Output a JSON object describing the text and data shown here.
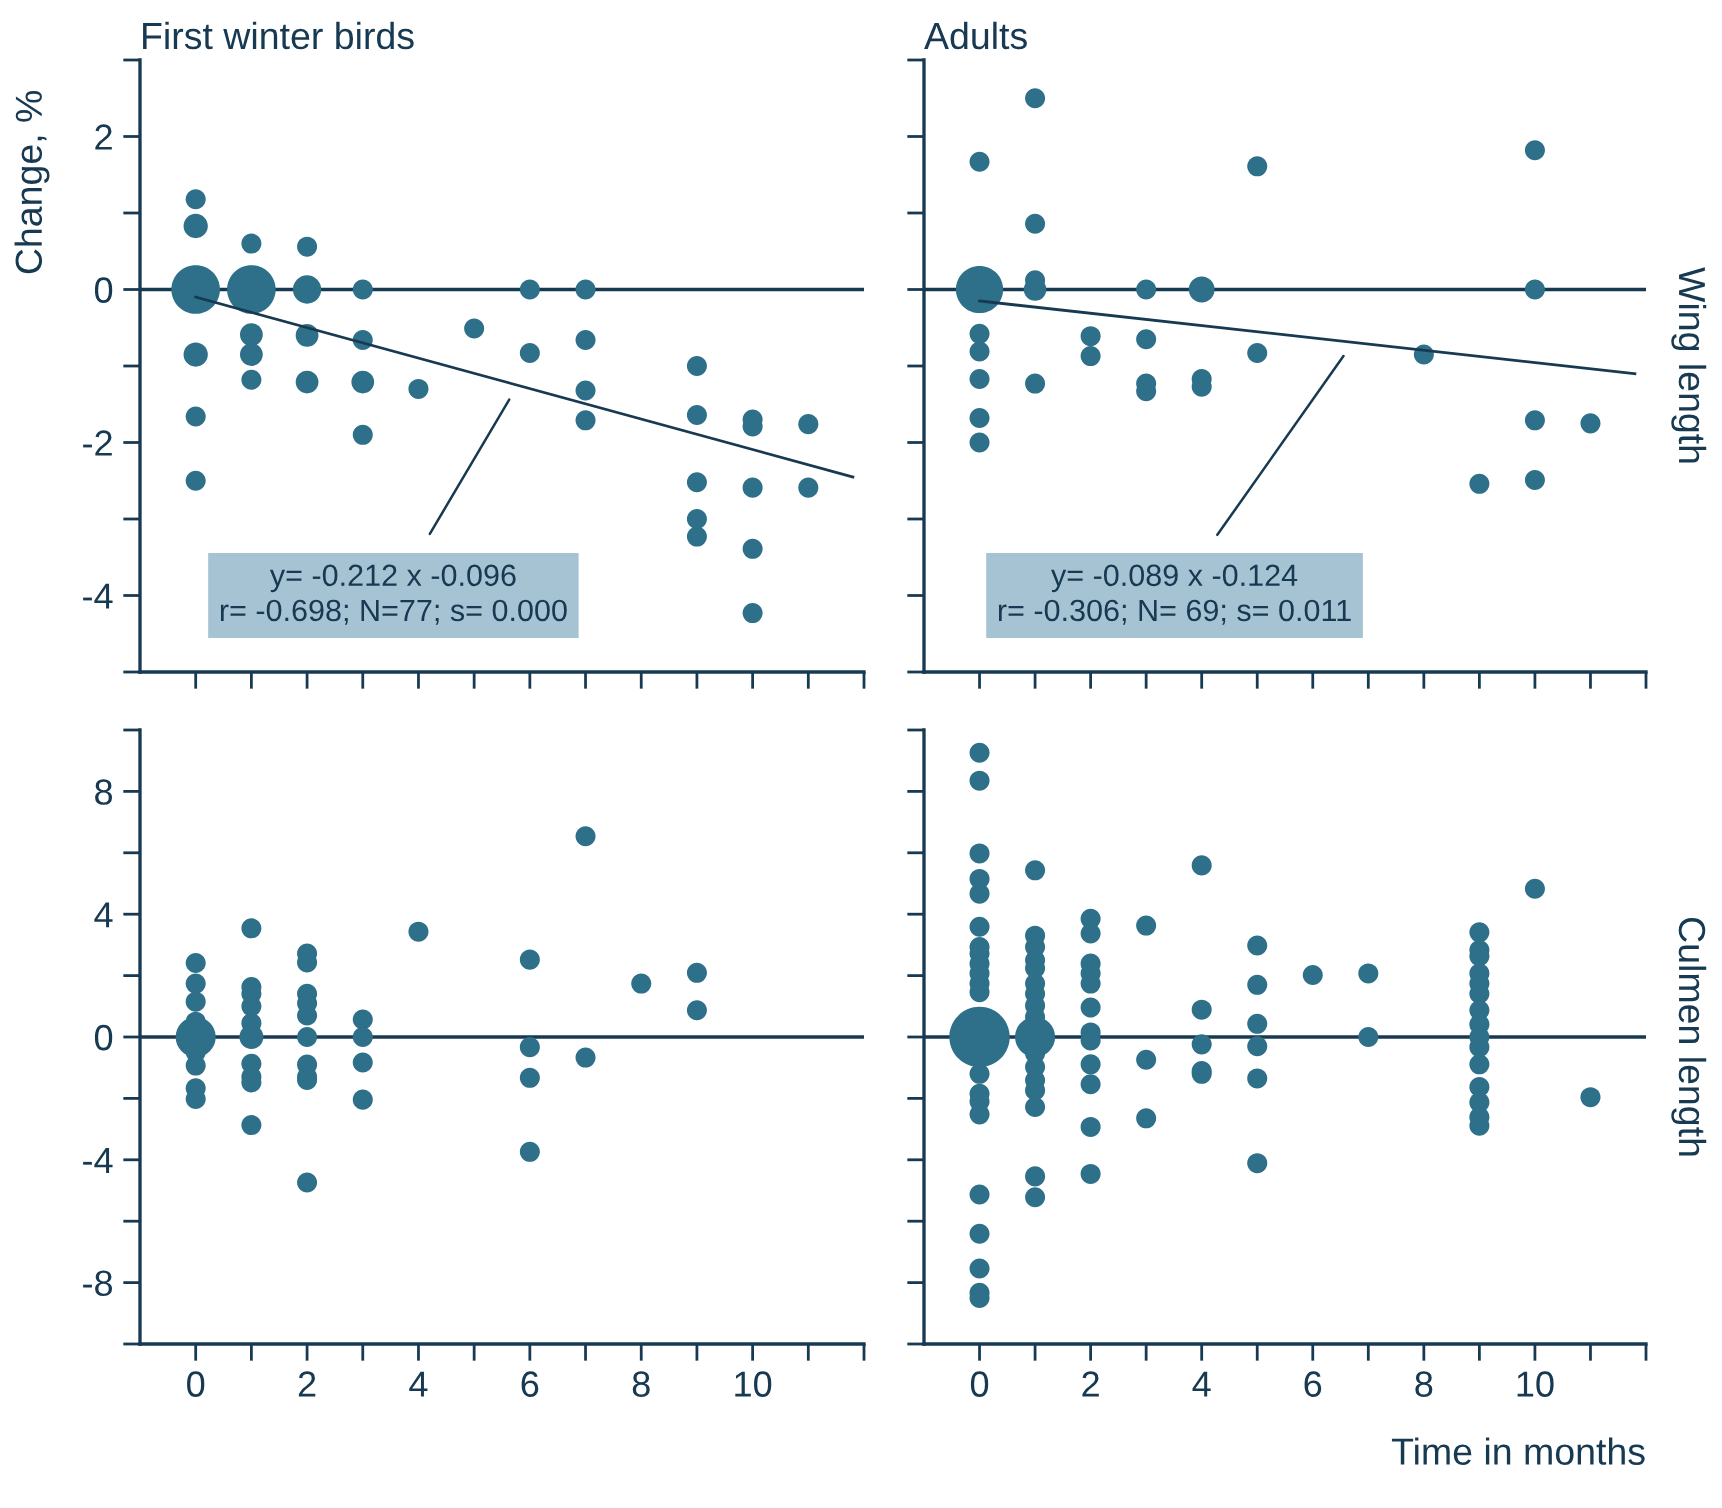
{
  "chart_data": [
    {
      "type": "bubble",
      "title": "First winter birds",
      "ylabel": "Change, %",
      "tick_labels": "y",
      "xlim": [
        -1,
        12
      ],
      "xticks": [
        {
          "value": 0,
          "label": null
        },
        {
          "value": 1,
          "label": null
        },
        {
          "value": 2,
          "label": null
        },
        {
          "value": 3,
          "label": null
        },
        {
          "value": 4,
          "label": null
        },
        {
          "value": 5,
          "label": null
        },
        {
          "value": 6,
          "label": null
        },
        {
          "value": 7,
          "label": null
        },
        {
          "value": 8,
          "label": null
        },
        {
          "value": 9,
          "label": null
        },
        {
          "value": 10,
          "label": null
        },
        {
          "value": 11,
          "label": null
        },
        {
          "value": 12,
          "label": null
        }
      ],
      "ylim": [
        -5,
        3
      ],
      "yticks": [
        {
          "value": -5,
          "label": null
        },
        -4,
        {
          "value": -3,
          "label": null
        },
        -2,
        {
          "value": -1,
          "label": null
        },
        0,
        {
          "value": 1,
          "label": null
        },
        2,
        {
          "value": 3,
          "label": null
        }
      ],
      "ref_lines": [
        {
          "axis": "y",
          "value": 0,
          "color": "#173a52"
        }
      ],
      "annotations": [
        "y= -0.212 x -0.096\nr= -0.698; N=77; s= 0.000"
      ],
      "series": [
        {
          "color": "#2e6f8a",
          "x": [
            0,
            0,
            0,
            0,
            0,
            0,
            1,
            1,
            1,
            1,
            1,
            2,
            2,
            2,
            2,
            3,
            3,
            3,
            3,
            4,
            5,
            6,
            6,
            7,
            7,
            7,
            7,
            9,
            9,
            9,
            9,
            9,
            10,
            10,
            10,
            10,
            10,
            11,
            11
          ],
          "values": [
            1.18,
            0.83,
            0,
            -0.85,
            -1.66,
            -2.5,
            0.6,
            0,
            -0.59,
            -0.85,
            -1.18,
            0.56,
            0,
            -0.6,
            -1.21,
            0,
            -0.66,
            -1.21,
            -1.9,
            -1.3,
            -0.51,
            0,
            -0.83,
            0,
            -0.66,
            -1.32,
            -1.71,
            -1.0,
            -1.64,
            -2.52,
            -3.0,
            -3.23,
            -1.7,
            -1.79,
            -2.59,
            -3.39,
            -4.23,
            -1.76,
            -2.59
          ],
          "sizes": [
            0.17,
            0.25,
            1,
            0.25,
            0.17,
            0.17,
            0.17,
            1,
            0.22,
            0.22,
            0.17,
            0.17,
            0.34,
            0.22,
            0.22,
            0.17,
            0.17,
            0.22,
            0.17,
            0.17,
            0.17,
            0.17,
            0.17,
            0.17,
            0.17,
            0.17,
            0.17,
            0.17,
            0.17,
            0.17,
            0.17,
            0.17,
            0.17,
            0.17,
            0.17,
            0.17,
            0.17,
            0.17,
            0.17
          ]
        },
        {
          "type": "line",
          "color": "#173a52",
          "x": [
            0,
            11.8
          ],
          "values": [
            -0.1,
            -2.45
          ]
        }
      ]
    },
    {
      "type": "bubble",
      "title": "Adults",
      "tick_labels": false,
      "xlim": [
        -1,
        12
      ],
      "xticks": [
        {
          "value": 0,
          "label": null
        },
        {
          "value": 1,
          "label": null
        },
        {
          "value": 2,
          "label": null
        },
        {
          "value": 3,
          "label": null
        },
        {
          "value": 4,
          "label": null
        },
        {
          "value": 5,
          "label": null
        },
        {
          "value": 6,
          "label": null
        },
        {
          "value": 7,
          "label": null
        },
        {
          "value": 8,
          "label": null
        },
        {
          "value": 9,
          "label": null
        },
        {
          "value": 10,
          "label": null
        },
        {
          "value": 11,
          "label": null
        },
        {
          "value": 12,
          "label": null
        }
      ],
      "ylim": [
        -5,
        3
      ],
      "yticks": [
        {
          "value": -5,
          "label": null
        },
        {
          "value": -4,
          "label": null
        },
        {
          "value": -3,
          "label": null
        },
        {
          "value": -2,
          "label": null
        },
        {
          "value": -1,
          "label": null
        },
        {
          "value": 0,
          "label": null
        },
        {
          "value": 1,
          "label": null
        },
        {
          "value": 2,
          "label": null
        },
        {
          "value": 3,
          "label": null
        }
      ],
      "ref_lines": [
        {
          "axis": "y",
          "value": 0,
          "color": "#173a52"
        }
      ],
      "annotations": [
        "y= -0.089 x -0.124\nr= -0.306; N= 69; s= 0.011",
        "Wing length"
      ],
      "series": [
        {
          "color": "#2e6f8a",
          "x": [
            0,
            0,
            0,
            0,
            0,
            0,
            0,
            1,
            1,
            1,
            1,
            1,
            2,
            2,
            3,
            3,
            3,
            3,
            4,
            4,
            4,
            5,
            5,
            8,
            9,
            10,
            10,
            10,
            10,
            11
          ],
          "values": [
            1.67,
            0,
            -0.58,
            -0.81,
            -1.17,
            -1.68,
            -2.0,
            2.5,
            0.86,
            0.12,
            0,
            -1.23,
            -0.61,
            -0.87,
            0,
            -0.65,
            -1.23,
            -1.33,
            0,
            -1.17,
            -1.27,
            1.61,
            -0.83,
            -0.85,
            -2.54,
            1.82,
            0,
            -1.71,
            -2.49,
            -1.75
          ],
          "sizes": [
            0.18,
            1,
            0.18,
            0.18,
            0.18,
            0.18,
            0.18,
            0.18,
            0.18,
            0.18,
            0.23,
            0.18,
            0.18,
            0.18,
            0.18,
            0.18,
            0.18,
            0.18,
            0.3,
            0.18,
            0.18,
            0.18,
            0.18,
            0.18,
            0.18,
            0.18,
            0.18,
            0.18,
            0.18,
            0.18
          ]
        },
        {
          "type": "line",
          "color": "#173a52",
          "x": [
            0,
            11.8
          ],
          "values": [
            -0.15,
            -1.1
          ]
        }
      ]
    },
    {
      "type": "bubble",
      "xlim": [
        -1,
        12
      ],
      "xticks": [
        0,
        {
          "value": 1,
          "label": null
        },
        2,
        {
          "value": 3,
          "label": null
        },
        4,
        {
          "value": 5,
          "label": null
        },
        6,
        {
          "value": 7,
          "label": null
        },
        8,
        {
          "value": 9,
          "label": null
        },
        10,
        {
          "value": 11,
          "label": null
        },
        {
          "value": 12,
          "label": null
        }
      ],
      "ylim": [
        -10,
        10
      ],
      "yticks": [
        {
          "value": -10,
          "label": null
        },
        -8,
        {
          "value": -6,
          "label": null
        },
        -4,
        {
          "value": -2,
          "label": null
        },
        0,
        {
          "value": 2,
          "label": null
        },
        4,
        {
          "value": 6,
          "label": null
        },
        8,
        {
          "value": 10,
          "label": null
        }
      ],
      "ref_lines": [
        {
          "axis": "y",
          "value": 0,
          "color": "#173a52"
        }
      ],
      "series": [
        {
          "color": "#2e6f8a",
          "x": [
            0,
            0,
            0,
            0,
            0,
            0,
            0,
            0,
            0,
            1,
            1,
            1,
            1,
            1,
            1,
            1,
            1,
            1,
            1,
            2,
            2,
            2,
            2,
            2,
            2,
            2,
            2,
            2,
            2,
            3,
            3,
            3,
            3,
            4,
            6,
            6,
            6,
            6,
            7,
            7,
            8,
            9,
            9
          ],
          "values": [
            2.41,
            1.74,
            1.15,
            0.5,
            0,
            -0.5,
            -0.93,
            -1.67,
            -2.02,
            3.54,
            1.63,
            1.41,
            1.0,
            0.45,
            0,
            -0.87,
            -1.3,
            -1.48,
            -2.87,
            2.72,
            2.43,
            1.41,
            1.1,
            0.7,
            0,
            -0.9,
            -1.3,
            -1.4,
            -4.74,
            0.57,
            0,
            -0.83,
            -2.04,
            3.43,
            2.52,
            -0.33,
            -1.33,
            -3.74,
            6.54,
            -0.67,
            1.74,
            2.09,
            0.87
          ],
          "sizes": [
            0.25,
            0.25,
            0.25,
            0.25,
            1,
            0.25,
            0.25,
            0.25,
            0.25,
            0.25,
            0.25,
            0.25,
            0.25,
            0.25,
            0.36,
            0.25,
            0.25,
            0.25,
            0.25,
            0.25,
            0.25,
            0.25,
            0.25,
            0.25,
            0.25,
            0.25,
            0.25,
            0.25,
            0.25,
            0.25,
            0.25,
            0.25,
            0.25,
            0.25,
            0.25,
            0.25,
            0.25,
            0.25,
            0.25,
            0.25,
            0.25,
            0.25,
            0.25
          ]
        }
      ]
    },
    {
      "type": "bubble",
      "xlabel": "Time in months",
      "tick_labels": "x",
      "xlim": [
        -1,
        12
      ],
      "xticks": [
        0,
        {
          "value": 1,
          "label": null
        },
        2,
        {
          "value": 3,
          "label": null
        },
        4,
        {
          "value": 5,
          "label": null
        },
        6,
        {
          "value": 7,
          "label": null
        },
        8,
        {
          "value": 9,
          "label": null
        },
        10,
        {
          "value": 11,
          "label": null
        },
        {
          "value": 12,
          "label": null
        }
      ],
      "ylim": [
        -10,
        10
      ],
      "yticks": [
        {
          "value": -10,
          "label": null
        },
        {
          "value": -8,
          "label": null
        },
        {
          "value": -6,
          "label": null
        },
        {
          "value": -4,
          "label": null
        },
        {
          "value": -2,
          "label": null
        },
        {
          "value": 0,
          "label": null
        },
        {
          "value": 2,
          "label": null
        },
        {
          "value": 4,
          "label": null
        },
        {
          "value": 6,
          "label": null
        },
        {
          "value": 8,
          "label": null
        },
        {
          "value": 10,
          "label": null
        }
      ],
      "ref_lines": [
        {
          "axis": "y",
          "value": 0,
          "color": "#173a52"
        }
      ],
      "annotations": [
        "Culmen length"
      ],
      "series": [
        {
          "color": "#2e6f8a",
          "x": [
            0,
            0,
            0,
            0,
            0,
            0,
            0,
            0,
            0,
            0,
            0,
            0,
            0,
            0,
            0,
            0,
            0,
            0,
            0,
            0,
            0,
            0,
            1,
            1,
            1,
            1,
            1,
            1,
            1,
            1,
            1,
            1,
            1,
            1,
            1,
            1,
            1,
            1,
            1,
            2,
            2,
            2,
            2,
            2,
            2,
            2,
            2,
            2,
            2,
            2,
            2,
            3,
            3,
            3,
            4,
            4,
            4,
            4,
            4,
            5,
            5,
            5,
            5,
            5,
            5,
            6,
            7,
            7,
            9,
            9,
            9,
            9,
            9,
            9,
            9,
            9,
            9,
            9,
            9,
            9,
            9,
            9,
            9,
            10,
            11
          ],
          "values": [
            9.26,
            8.35,
            5.98,
            5.15,
            4.67,
            3.59,
            2.93,
            2.72,
            2.39,
            2.07,
            1.74,
            1.46,
            0,
            -1.2,
            -1.85,
            -2.1,
            -2.52,
            -5.13,
            -6.41,
            -7.54,
            -8.33,
            -8.5,
            5.43,
            3.3,
            2.93,
            2.5,
            2.24,
            1.74,
            1.41,
            1.02,
            0.65,
            0,
            -0.54,
            -0.98,
            -1.41,
            -1.74,
            -2.28,
            -4.54,
            -5.22,
            3.85,
            3.37,
            2.39,
            2.07,
            1.74,
            0.96,
            0.15,
            -0.11,
            -0.89,
            -1.54,
            -2.93,
            -4.46,
            3.63,
            -0.74,
            -2.65,
            5.59,
            0.89,
            -0.24,
            -1.11,
            -1.2,
            2.98,
            1.7,
            0.43,
            -0.3,
            -1.35,
            -4.11,
            2.02,
            2.07,
            0,
            3.41,
            2.83,
            2.63,
            2.07,
            1.74,
            1.41,
            0.87,
            0.41,
            0,
            -0.33,
            -0.89,
            -1.63,
            -2.13,
            -2.61,
            -2.89,
            4.83,
            -1.96
          ],
          "sizes": [
            0.11,
            0.11,
            0.11,
            0.11,
            0.11,
            0.11,
            0.11,
            0.11,
            0.11,
            0.11,
            0.11,
            0.11,
            1,
            0.11,
            0.11,
            0.11,
            0.11,
            0.11,
            0.11,
            0.11,
            0.11,
            0.11,
            0.11,
            0.11,
            0.11,
            0.11,
            0.11,
            0.11,
            0.11,
            0.11,
            0.11,
            0.44,
            0.11,
            0.11,
            0.11,
            0.11,
            0.11,
            0.11,
            0.11,
            0.11,
            0.11,
            0.11,
            0.11,
            0.11,
            0.11,
            0.11,
            0.11,
            0.11,
            0.11,
            0.11,
            0.11,
            0.11,
            0.11,
            0.11,
            0.11,
            0.11,
            0.11,
            0.11,
            0.11,
            0.11,
            0.11,
            0.11,
            0.11,
            0.11,
            0.11,
            0.11,
            0.11,
            0.11,
            0.11,
            0.11,
            0.11,
            0.11,
            0.11,
            0.11,
            0.11,
            0.11,
            0.11,
            0.11,
            0.11,
            0.11,
            0.11,
            0.11,
            0.11,
            0.11,
            0.11
          ]
        }
      ]
    }
  ]
}
